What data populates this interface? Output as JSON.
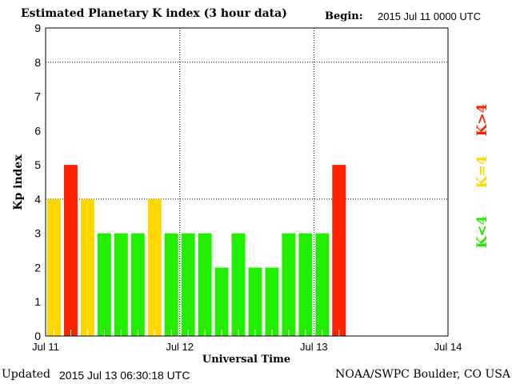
{
  "header": {
    "title": "Estimated Planetary K index (3 hour data)",
    "begin_label": "Begin:",
    "begin_value": "2015 Jul 11 0000 UTC"
  },
  "footer": {
    "updated_label": "Updated",
    "updated_value": "2015 Jul 13 06:30:18 UTC",
    "credit": "NOAA/SWPC Boulder, CO USA"
  },
  "legend": [
    {
      "label": "K>4",
      "color": "#ff2200"
    },
    {
      "label": "K=4",
      "color": "#ffd700"
    },
    {
      "label": "K<4",
      "color": "#22ee00"
    }
  ],
  "chart_data": {
    "type": "bar",
    "title": "Estimated Planetary K index (3 hour data)",
    "xlabel": "Universal Time",
    "ylabel": "Kp index",
    "ylim": [
      0,
      9
    ],
    "yticks": [
      "0",
      "1",
      "2",
      "3",
      "4",
      "5",
      "6",
      "7",
      "8",
      "9"
    ],
    "xticks": [
      "Jul 11",
      "Jul 12",
      "Jul 13",
      "Jul 14"
    ],
    "slots_per_day": 8,
    "values": [
      4,
      5,
      4,
      3,
      3,
      3,
      4,
      3,
      3,
      3,
      2,
      3,
      2,
      2,
      3,
      3,
      3,
      5
    ],
    "colors": {
      "low": "#22ee00",
      "equal": "#ffd700",
      "high": "#ff2200"
    },
    "grid": "dotted at Kp 4 and 8 and day boundaries"
  }
}
